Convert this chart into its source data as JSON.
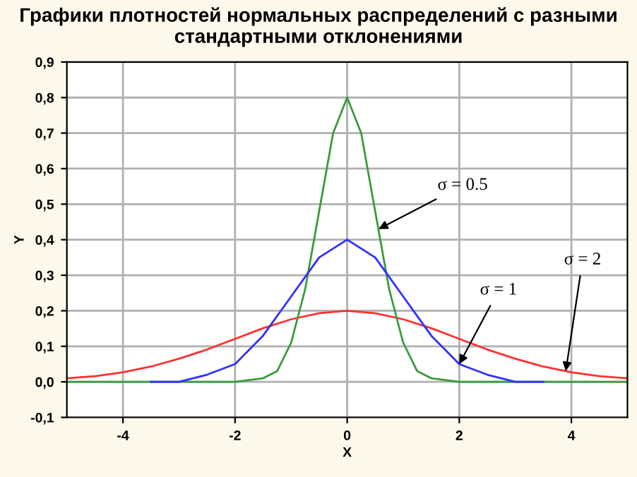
{
  "chart_data": {
    "type": "line",
    "title": "Графики плотностей нормальных распределений с разными\nстандартными отклонениями",
    "xlabel": "X",
    "ylabel": "Y",
    "xlim": [
      -5,
      5
    ],
    "xticks": [
      -4,
      -2,
      0,
      2,
      4
    ],
    "ylim": [
      -0.1,
      0.9
    ],
    "yticks": [
      {
        "value": -0.1,
        "label": "-0,1"
      },
      {
        "value": 0,
        "label": "0,0"
      },
      {
        "value": 0.1,
        "label": "0,1"
      },
      {
        "value": 0.2,
        "label": "0,2"
      },
      {
        "value": 0.3,
        "label": "0,3"
      },
      {
        "value": 0.4,
        "label": "0,4"
      },
      {
        "value": 0.5,
        "label": "0,5"
      },
      {
        "value": 0.6,
        "label": "0,6"
      },
      {
        "value": 0.7,
        "label": "0,7"
      },
      {
        "value": 0.8,
        "label": "0,8"
      },
      {
        "value": 0.9,
        "label": "0,9"
      }
    ],
    "grid": true,
    "legend": false,
    "marker": "none",
    "line_style": "solid",
    "series": [
      {
        "color": "#ff3030",
        "x": [
          -5,
          -4.5,
          -4,
          -3.5,
          -3,
          -2.5,
          -2,
          -1.5,
          -1,
          -0.5,
          0,
          0.5,
          1,
          1.5,
          2,
          2.5,
          3,
          3.5,
          4,
          4.5,
          5
        ],
        "values": [
          0.01,
          0.016,
          0.027,
          0.043,
          0.065,
          0.091,
          0.121,
          0.151,
          0.176,
          0.193,
          0.2,
          0.193,
          0.176,
          0.151,
          0.121,
          0.091,
          0.065,
          0.043,
          0.027,
          0.016,
          0.01
        ]
      },
      {
        "color": "#3a9a3a",
        "x": [
          -5,
          -2,
          -1.5,
          -1.25,
          -1,
          -0.75,
          -0.5,
          -0.25,
          0,
          0.25,
          0.5,
          0.75,
          1,
          1.25,
          1.5,
          2,
          5
        ],
        "values": [
          0,
          0,
          0.01,
          0.03,
          0.11,
          0.26,
          0.48,
          0.7,
          0.8,
          0.7,
          0.48,
          0.26,
          0.11,
          0.03,
          0.01,
          0,
          0
        ]
      },
      {
        "color": "#3030ff",
        "x": [
          -3.5,
          -3,
          -2.5,
          -2,
          -1.5,
          -1,
          -0.5,
          0,
          0.5,
          1,
          1.5,
          2,
          2.5,
          3,
          3.5
        ],
        "values": [
          0,
          0,
          0.02,
          0.05,
          0.13,
          0.24,
          0.35,
          0.4,
          0.35,
          0.24,
          0.13,
          0.05,
          0.02,
          0,
          0
        ]
      }
    ],
    "annotations": [
      {
        "text": "σ = 0.5",
        "x": 0.56,
        "y": 0.43
      },
      {
        "text": "σ = 1",
        "x": 2,
        "y": 0.05
      },
      {
        "text": "σ = 2",
        "x": 3.9,
        "y": 0.03
      }
    ]
  }
}
